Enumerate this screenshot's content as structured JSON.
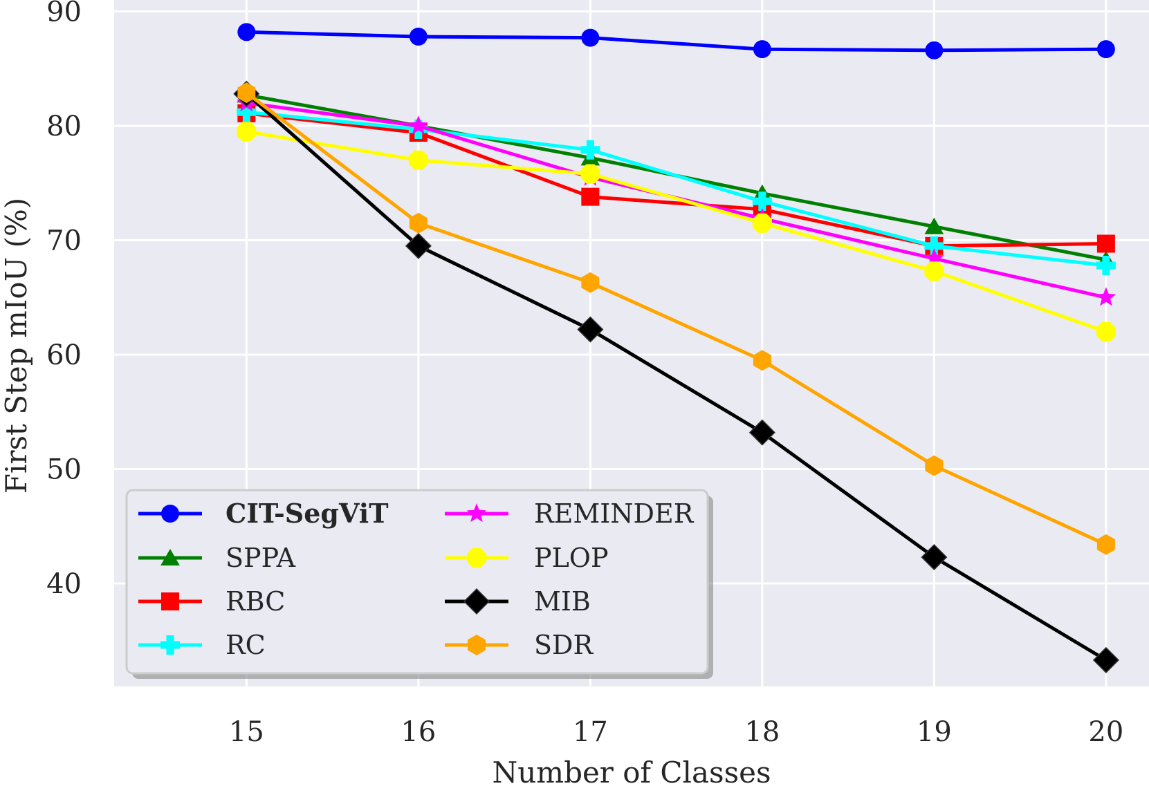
{
  "chart_data": {
    "type": "line",
    "title": "",
    "xlabel": "Number of Classes",
    "ylabel": "First Step mIoU (%)",
    "x": [
      15,
      16,
      17,
      18,
      19,
      20
    ],
    "xlim": [
      14.23,
      20.25
    ],
    "ylim": [
      31,
      91
    ],
    "xticks": [
      "15",
      "16",
      "17",
      "18",
      "19",
      "20"
    ],
    "yticks": [
      "40",
      "50",
      "60",
      "70",
      "80",
      "90"
    ],
    "ytick_values": [
      40,
      50,
      60,
      70,
      80,
      90
    ],
    "grid": true,
    "background": "#eaeaf2",
    "legend_position": "lower-left",
    "series": [
      {
        "name": "CIT-SegViT",
        "bold": true,
        "color": "#0000ff",
        "marker": "circle",
        "values": [
          88.2,
          87.8,
          87.7,
          86.7,
          86.6,
          86.7
        ]
      },
      {
        "name": "SPPA",
        "bold": false,
        "color": "#008000",
        "marker": "triangle",
        "values": [
          82.7,
          80.0,
          77.2,
          74.1,
          71.2,
          68.3
        ]
      },
      {
        "name": "RBC",
        "bold": false,
        "color": "#ff0000",
        "marker": "square",
        "values": [
          81.1,
          79.4,
          73.8,
          72.7,
          69.5,
          69.7
        ]
      },
      {
        "name": "RC",
        "bold": false,
        "color": "#00ffff",
        "marker": "plus",
        "values": [
          81.2,
          79.7,
          77.9,
          73.4,
          69.5,
          67.8
        ]
      },
      {
        "name": "REMINDER",
        "bold": false,
        "color": "#ff00ff",
        "marker": "star",
        "values": [
          82.0,
          80.0,
          75.5,
          71.9,
          68.4,
          65.0
        ]
      },
      {
        "name": "PLOP",
        "bold": false,
        "color": "#ffff00",
        "marker": "xplus",
        "values": [
          79.5,
          77.0,
          75.8,
          71.5,
          67.3,
          62.0
        ]
      },
      {
        "name": "MIB",
        "bold": false,
        "color": "#000000",
        "marker": "diamond",
        "values": [
          82.8,
          69.5,
          62.2,
          53.2,
          42.3,
          33.3
        ]
      },
      {
        "name": "SDR",
        "bold": false,
        "color": "#ffa500",
        "marker": "hexagon",
        "values": [
          82.9,
          71.5,
          66.3,
          59.5,
          50.3,
          43.4
        ]
      }
    ]
  }
}
